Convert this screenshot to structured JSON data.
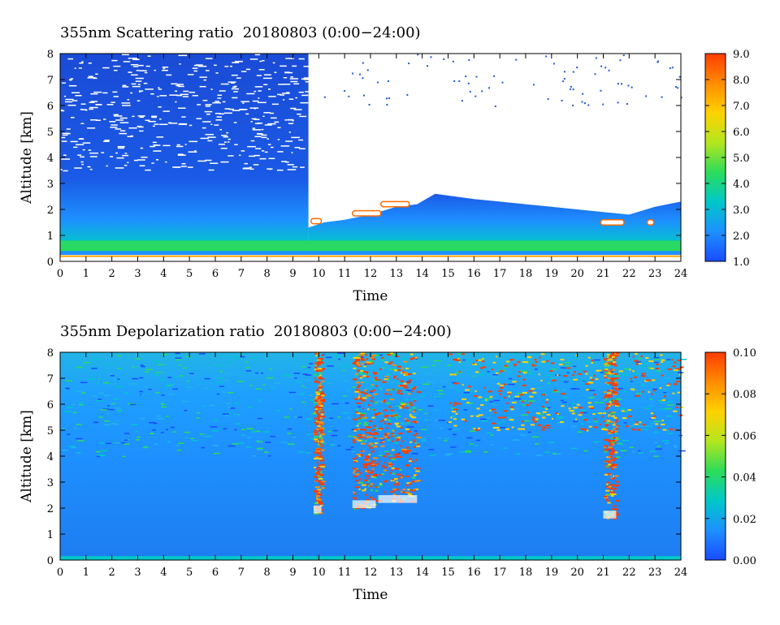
{
  "chart_data": [
    {
      "type": "heatmap",
      "title": "355nm Scattering ratio  20180803 (0:00−24:00)",
      "xlabel": "Time",
      "ylabel": "Altitude [km]",
      "xlim": [
        0,
        24
      ],
      "ylim": [
        0,
        8
      ],
      "x_ticks": [
        "0",
        "1",
        "2",
        "3",
        "4",
        "5",
        "6",
        "7",
        "8",
        "9",
        "10",
        "11",
        "12",
        "13",
        "14",
        "15",
        "16",
        "17",
        "18",
        "19",
        "20",
        "21",
        "22",
        "23",
        "24"
      ],
      "y_ticks": [
        "0",
        "1",
        "2",
        "3",
        "4",
        "5",
        "6",
        "7",
        "8"
      ],
      "colorbar": {
        "min": 1.0,
        "max": 9.0,
        "ticks": [
          "1.0",
          "2.0",
          "3.0",
          "4.0",
          "5.0",
          "6.0",
          "7.0",
          "8.0",
          "9.0"
        ]
      },
      "features": [
        {
          "label": "cloud base, 9.6-10.2h",
          "x": [
            9.6,
            10.2
          ],
          "y": [
            1.4,
            8.0
          ]
        },
        {
          "label": "cloud layer, 11-13.5h",
          "x": [
            11.0,
            13.5
          ],
          "y": [
            1.6,
            2.6
          ]
        },
        {
          "label": "cloud layer, 21-21.8h",
          "x": [
            21.0,
            21.8
          ],
          "y": [
            1.3,
            1.6
          ]
        }
      ]
    },
    {
      "type": "heatmap",
      "title": "355nm Depolarization ratio  20180803 (0:00−24:00)",
      "xlabel": "Time",
      "ylabel": "Altitude [km]",
      "xlim": [
        0,
        24
      ],
      "ylim": [
        0,
        8
      ],
      "x_ticks": [
        "0",
        "1",
        "2",
        "3",
        "4",
        "5",
        "6",
        "7",
        "8",
        "9",
        "10",
        "11",
        "12",
        "13",
        "14",
        "15",
        "16",
        "17",
        "18",
        "19",
        "20",
        "21",
        "22",
        "23",
        "24"
      ],
      "y_ticks": [
        "0",
        "1",
        "2",
        "3",
        "4",
        "5",
        "6",
        "7",
        "8"
      ],
      "colorbar": {
        "min": 0.0,
        "max": 0.1,
        "ticks": [
          "0.00",
          "0.02",
          "0.04",
          "0.06",
          "0.08",
          "0.10"
        ]
      },
      "features": [
        {
          "label": "high depolarization column",
          "x": [
            9.8,
            10.1
          ],
          "y": [
            1.8,
            8.0
          ]
        },
        {
          "label": "high depolarization column",
          "x": [
            11.3,
            12.2
          ],
          "y": [
            2.0,
            8.0
          ]
        },
        {
          "label": "high depolarization column",
          "x": [
            12.3,
            13.8
          ],
          "y": [
            2.2,
            8.0
          ]
        },
        {
          "label": "high depolarization column",
          "x": [
            21.0,
            21.5
          ],
          "y": [
            1.6,
            8.0
          ]
        }
      ]
    }
  ],
  "colors": {
    "scale": [
      "#1a4bff",
      "#1e90ff",
      "#00c8c8",
      "#2cdc5a",
      "#b4e61e",
      "#ffd200",
      "#ff8c00",
      "#ff3c00"
    ],
    "bg_low": "#1e5ad6",
    "ground": "#ffa000"
  }
}
